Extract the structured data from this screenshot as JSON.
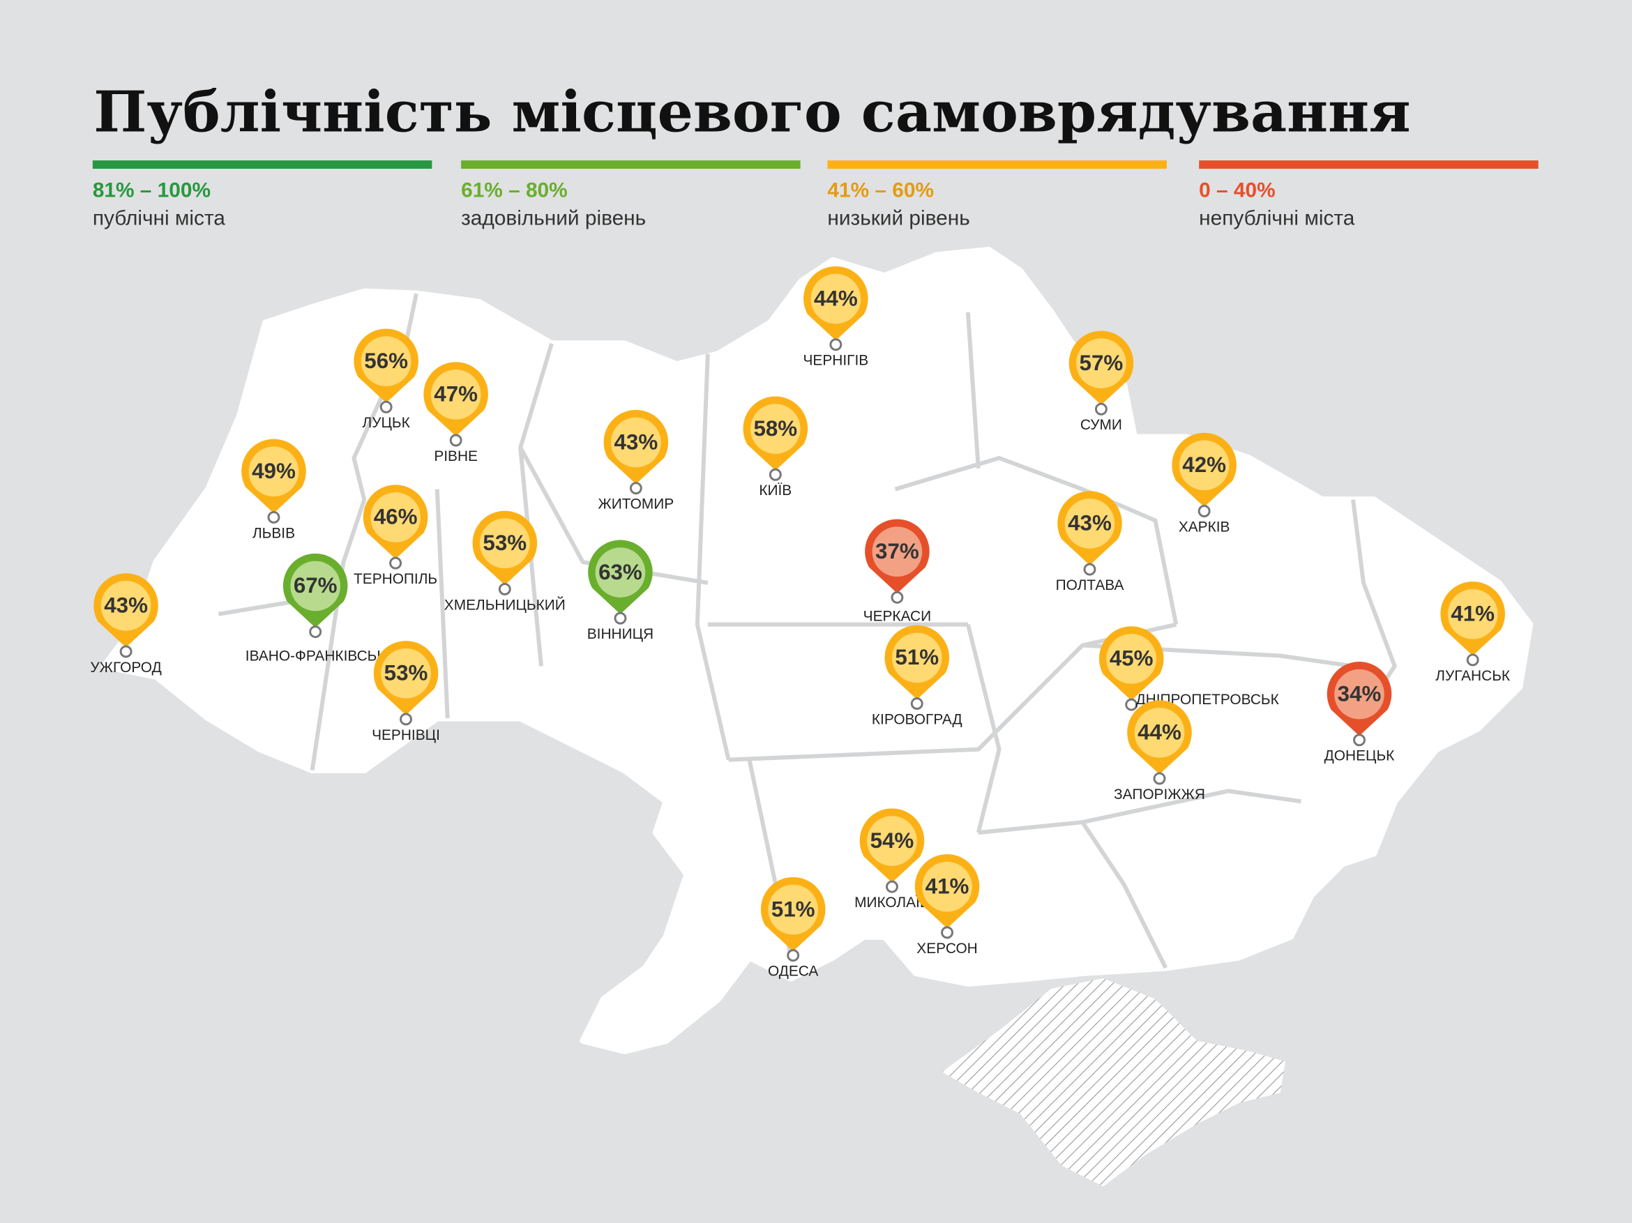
{
  "header": {
    "title": "Публічність місцевого самоврядування"
  },
  "legend": {
    "items": [
      {
        "range": "81% – 100%",
        "label": "публічні міста",
        "color": "#27983f"
      },
      {
        "range": "61% – 80%",
        "label": "задовільний рівень",
        "color": "#6aae2e"
      },
      {
        "range": "41% – 60%",
        "label": "низький рівень",
        "color": "#fbb116"
      },
      {
        "range": "0 – 40%",
        "label": "непублічні міста",
        "color": "#e5502b"
      }
    ]
  },
  "cities": [
    {
      "name": "ЛУЦЬК",
      "value": "56%",
      "level": 2
    },
    {
      "name": "РІВНЕ",
      "value": "47%",
      "level": 2
    },
    {
      "name": "ЛЬВІВ",
      "value": "49%",
      "level": 2
    },
    {
      "name": "ТЕРНОПІЛЬ",
      "value": "46%",
      "level": 2
    },
    {
      "name": "ІВАНО-ФРАНКІВСЬК",
      "value": "67%",
      "level": 1
    },
    {
      "name": "УЖГОРОД",
      "value": "43%",
      "level": 2
    },
    {
      "name": "ЧЕРНІВЦІ",
      "value": "53%",
      "level": 2
    },
    {
      "name": "ХМЕЛЬНИЦЬКИЙ",
      "value": "53%",
      "level": 2
    },
    {
      "name": "ЖИТОМИР",
      "value": "43%",
      "level": 2
    },
    {
      "name": "ВІННИЦЯ",
      "value": "63%",
      "level": 1
    },
    {
      "name": "КИЇВ",
      "value": "58%",
      "level": 2
    },
    {
      "name": "ЧЕРНІГІВ",
      "value": "44%",
      "level": 2
    },
    {
      "name": "СУМИ",
      "value": "57%",
      "level": 2
    },
    {
      "name": "ХАРКІВ",
      "value": "42%",
      "level": 2
    },
    {
      "name": "ПОЛТАВА",
      "value": "43%",
      "level": 2
    },
    {
      "name": "ЧЕРКАСИ",
      "value": "37%",
      "level": 3
    },
    {
      "name": "КІРОВОГРАД",
      "value": "51%",
      "level": 2
    },
    {
      "name": "ДНІПРОПЕТРОВСЬК",
      "value": "45%",
      "level": 2
    },
    {
      "name": "ЗАПОРІЖЖЯ",
      "value": "44%",
      "level": 2
    },
    {
      "name": "ДОНЕЦЬК",
      "value": "34%",
      "level": 3
    },
    {
      "name": "ЛУГАНСЬК",
      "value": "41%",
      "level": 2
    },
    {
      "name": "МИКОЛАЇВ",
      "value": "54%",
      "level": 2
    },
    {
      "name": "ХЕРСОН",
      "value": "41%",
      "level": 2
    },
    {
      "name": "ОДЕСА",
      "value": "51%",
      "level": 2
    }
  ]
}
